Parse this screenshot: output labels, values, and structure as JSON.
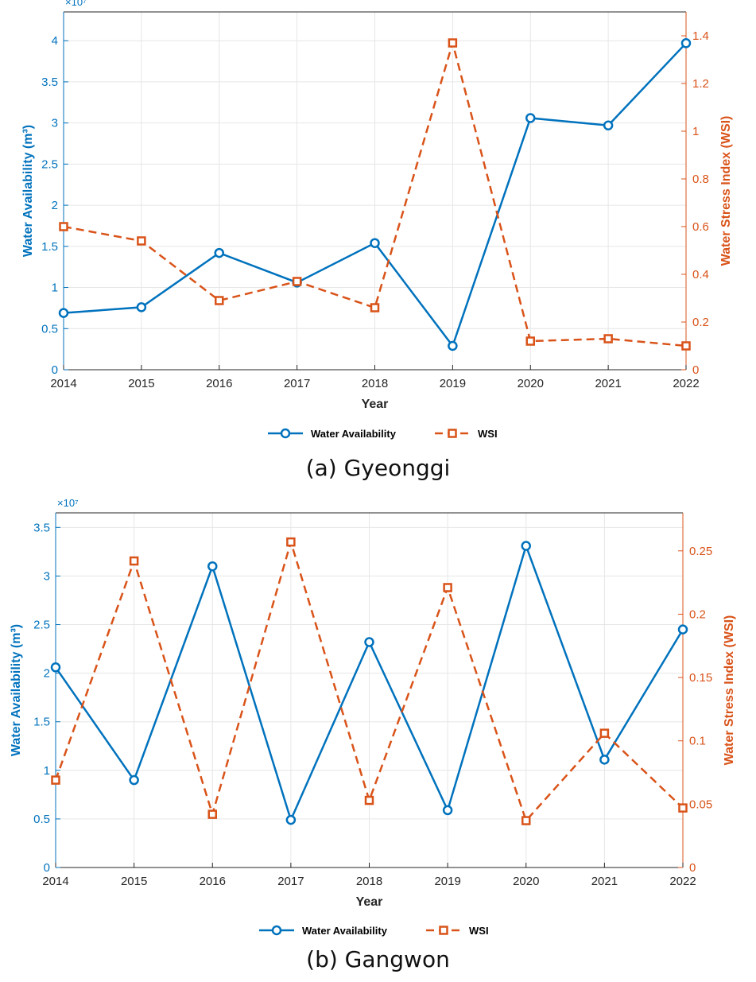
{
  "chart_data": [
    {
      "type": "line",
      "caption": "(a) Gyeonggi",
      "xlabel": "Year",
      "ylabel_left": "Water Availability (m³)",
      "ylabel_right": "Water Stress Index (WSI)",
      "left_exponent_label": "×10⁷",
      "x": [
        2014,
        2015,
        2016,
        2017,
        2018,
        2019,
        2020,
        2021,
        2022
      ],
      "x_ticks": [
        "2014",
        "2015",
        "2016",
        "2017",
        "2018",
        "2019",
        "2020",
        "2021",
        "2022"
      ],
      "left_ylim": [
        0,
        4.35
      ],
      "left_ticks": [
        "0",
        "0.5",
        "1",
        "1.5",
        "2",
        "2.5",
        "3",
        "3.5",
        "4"
      ],
      "right_ylim": [
        0,
        1.5
      ],
      "right_ticks": [
        "0",
        "0.2",
        "0.4",
        "0.6",
        "0.8",
        "1",
        "1.2",
        "1.4"
      ],
      "grid": true,
      "legend_position": "bottom-center",
      "series": [
        {
          "name": "Water Availability",
          "axis": "left",
          "color": "#0072BD",
          "marker": "circle",
          "style": "solid",
          "values": [
            0.69,
            0.76,
            1.42,
            1.06,
            1.54,
            0.29,
            3.06,
            2.97,
            3.97
          ]
        },
        {
          "name": "WSI",
          "axis": "right",
          "color": "#D95319",
          "marker": "square",
          "style": "dashed",
          "values": [
            0.6,
            0.54,
            0.29,
            0.37,
            0.26,
            1.37,
            0.12,
            0.13,
            0.1
          ]
        }
      ]
    },
    {
      "type": "line",
      "caption": "(b) Gangwon",
      "xlabel": "Year",
      "ylabel_left": "Water Availability (m³)",
      "ylabel_right": "Water Stress Index (WSI)",
      "left_exponent_label": "×10⁷",
      "x": [
        2014,
        2015,
        2016,
        2017,
        2018,
        2019,
        2020,
        2021,
        2022
      ],
      "x_ticks": [
        "2014",
        "2015",
        "2016",
        "2017",
        "2018",
        "2019",
        "2020",
        "2021",
        "2022"
      ],
      "left_ylim": [
        0,
        3.65
      ],
      "left_ticks": [
        "0",
        "0.5",
        "1",
        "1.5",
        "2",
        "2.5",
        "3",
        "3.5"
      ],
      "right_ylim": [
        0,
        0.28
      ],
      "right_ticks": [
        "0",
        "0.05",
        "0.1",
        "0.15",
        "0.2",
        "0.25"
      ],
      "grid": true,
      "legend_position": "bottom-center",
      "series": [
        {
          "name": "Water Availability",
          "axis": "left",
          "color": "#0072BD",
          "marker": "circle",
          "style": "solid",
          "values": [
            2.06,
            0.9,
            3.1,
            0.49,
            2.32,
            0.59,
            3.31,
            1.11,
            2.45
          ]
        },
        {
          "name": "WSI",
          "axis": "right",
          "color": "#D95319",
          "marker": "square",
          "style": "dashed",
          "values": [
            0.069,
            0.242,
            0.042,
            0.257,
            0.053,
            0.221,
            0.037,
            0.106,
            0.047
          ]
        }
      ]
    }
  ]
}
